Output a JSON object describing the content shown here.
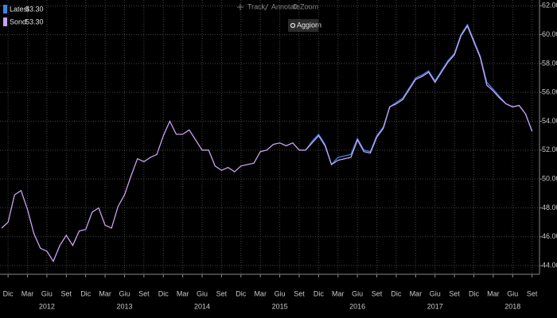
{
  "toolbar": {
    "items": [
      "Track",
      "Annotate",
      "Zoom"
    ],
    "button": "Aggiorn"
  },
  "chart_data": {
    "type": "line",
    "background": "#000000",
    "grid": true,
    "y_axis": "right",
    "legend": "top-left",
    "categories": [
      null,
      "Dic",
      null,
      null,
      "Mar",
      null,
      null,
      "Giu",
      null,
      null,
      "Set",
      null,
      null,
      "Dic",
      null,
      null,
      "Mar",
      null,
      null,
      "Giu",
      null,
      null,
      "Set",
      null,
      null,
      "Dic",
      null,
      null,
      "Mar",
      null,
      null,
      "Giu",
      null,
      null,
      "Set",
      null,
      null,
      "Dic",
      null,
      null,
      "Mar",
      null,
      null,
      "Giu",
      null,
      null,
      "Set",
      null,
      null,
      "Dic",
      null,
      null,
      "Mar",
      null,
      null,
      "Giu",
      null,
      null,
      "Set",
      null,
      null,
      "Dic",
      null,
      null,
      "Mar",
      null,
      null,
      "Giu",
      null,
      null,
      "Set",
      null,
      null,
      "Dic",
      null,
      null,
      "Mar",
      null,
      null,
      "Giu",
      null,
      null,
      "Set"
    ],
    "category_groups": [
      null,
      null,
      null,
      null,
      null,
      null,
      null,
      "2012",
      null,
      null,
      null,
      null,
      null,
      null,
      null,
      null,
      null,
      null,
      null,
      "2013",
      null,
      null,
      null,
      null,
      null,
      null,
      null,
      null,
      null,
      null,
      null,
      "2014",
      null,
      null,
      null,
      null,
      null,
      null,
      null,
      null,
      null,
      null,
      null,
      "2015",
      null,
      null,
      null,
      null,
      null,
      null,
      null,
      null,
      null,
      null,
      null,
      "2016",
      null,
      null,
      null,
      null,
      null,
      null,
      null,
      null,
      null,
      null,
      null,
      "2017",
      null,
      null,
      null,
      null,
      null,
      null,
      null,
      null,
      null,
      null,
      null,
      "2018",
      null,
      null,
      null
    ],
    "series": [
      {
        "name": "Latest",
        "legend_label": "53.30",
        "color": "#3d84e6",
        "values": [
          null,
          null,
          null,
          null,
          null,
          null,
          null,
          null,
          null,
          null,
          null,
          null,
          null,
          null,
          null,
          null,
          null,
          null,
          null,
          null,
          null,
          null,
          null,
          null,
          null,
          null,
          null,
          null,
          null,
          null,
          null,
          null,
          null,
          null,
          null,
          null,
          null,
          null,
          null,
          null,
          null,
          null,
          null,
          null,
          null,
          null,
          null,
          52.0,
          52.6,
          53.1,
          52.4,
          51.0,
          51.5,
          51.6,
          51.7,
          52.8,
          52.0,
          51.9,
          53.0,
          53.6,
          55.0,
          55.3,
          55.6,
          56.3,
          57.0,
          57.2,
          57.5,
          56.8,
          57.5,
          58.2,
          58.7,
          60.0,
          60.7,
          59.6,
          58.5,
          56.7,
          56.2,
          55.7,
          55.2,
          55.0,
          55.1,
          54.5,
          53.3
        ]
      },
      {
        "name": "Sond",
        "legend_label": "53.30",
        "color": "#c9a2f2",
        "values": [
          46.6,
          47.0,
          48.9,
          49.2,
          47.9,
          46.2,
          45.2,
          45.0,
          44.3,
          45.4,
          46.1,
          45.4,
          46.4,
          46.5,
          47.7,
          48.0,
          46.8,
          46.6,
          48.1,
          48.9,
          50.2,
          51.4,
          51.2,
          51.5,
          51.7,
          53.0,
          54.0,
          53.1,
          53.1,
          53.4,
          52.7,
          52.0,
          52.0,
          50.9,
          50.6,
          50.8,
          50.5,
          50.9,
          51.0,
          51.1,
          51.9,
          52.0,
          52.4,
          52.5,
          52.3,
          52.5,
          52.0,
          52.0,
          52.5,
          53.0,
          52.3,
          51.0,
          51.3,
          51.4,
          51.5,
          52.7,
          51.9,
          51.8,
          52.9,
          53.5,
          55.0,
          55.2,
          55.5,
          56.2,
          56.9,
          57.1,
          57.4,
          56.7,
          57.4,
          58.1,
          58.6,
          59.9,
          60.6,
          59.5,
          58.4,
          56.5,
          56.1,
          55.6,
          55.2,
          55.0,
          55.1,
          54.5,
          53.3
        ]
      }
    ],
    "ylim": [
      43.4,
      62.4
    ],
    "yticks": [
      {
        "value": 44,
        "label": "44.00"
      },
      {
        "value": 46,
        "label": "46.00"
      },
      {
        "value": 48,
        "label": "48.00"
      },
      {
        "value": 50,
        "label": "50.00"
      },
      {
        "value": 52,
        "label": "52.00"
      },
      {
        "value": 54,
        "label": "54.00"
      },
      {
        "value": 56,
        "label": "56.00"
      },
      {
        "value": 58,
        "label": "58.00"
      },
      {
        "value": 60,
        "label": "60.00"
      },
      {
        "value": 62,
        "label": "62.00"
      }
    ]
  }
}
